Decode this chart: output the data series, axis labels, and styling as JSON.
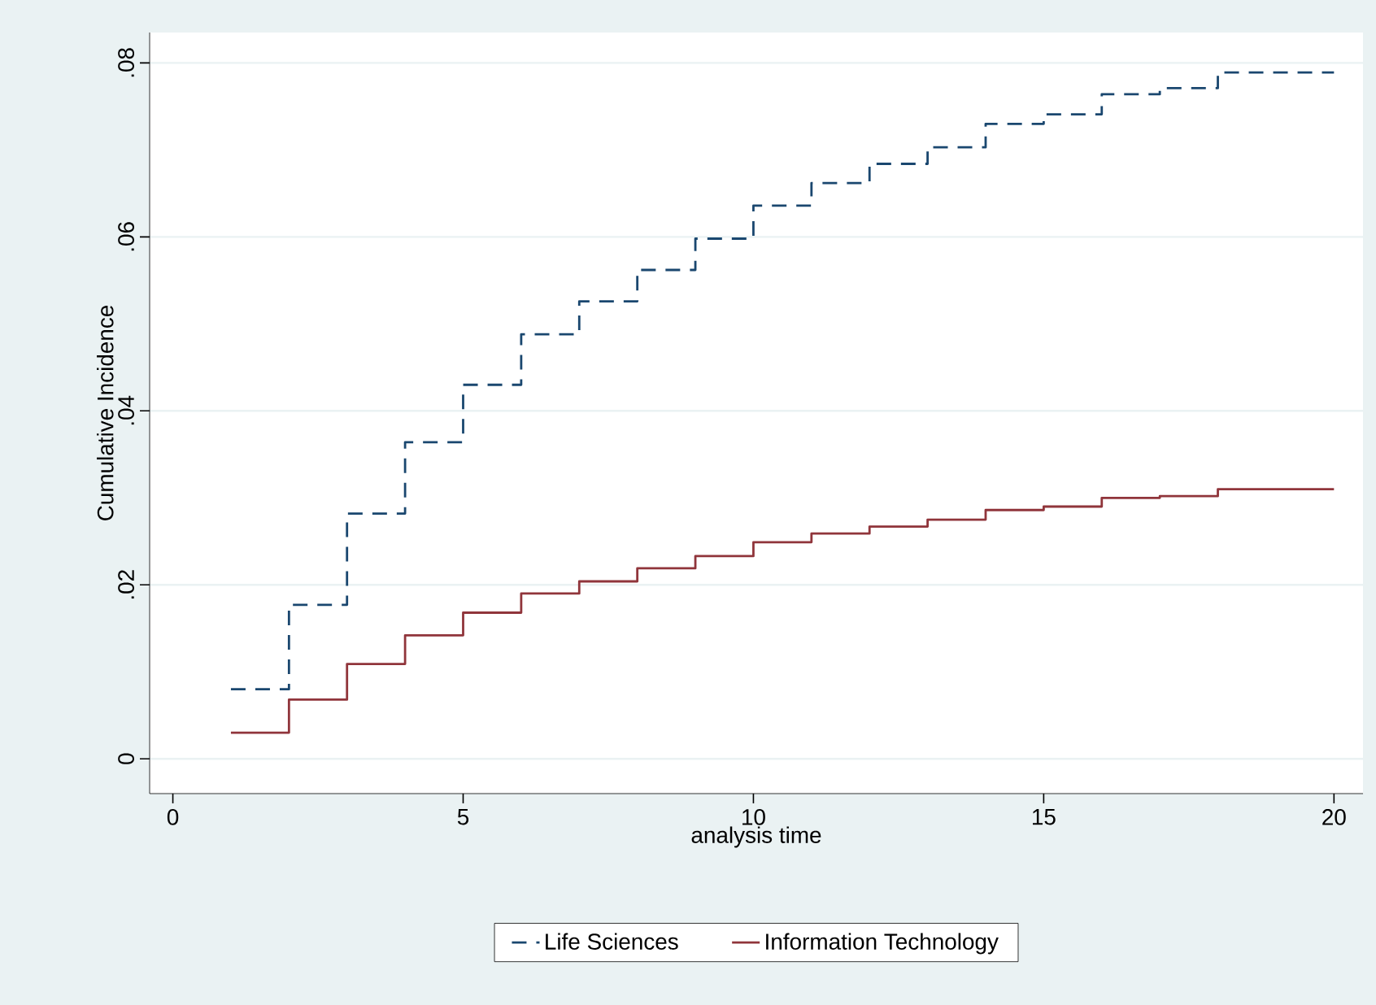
{
  "chart_data": {
    "type": "step",
    "xlabel": "analysis time",
    "ylabel": "Cumulative Incidence",
    "x": [
      1,
      2,
      3,
      4,
      5,
      6,
      7,
      8,
      9,
      10,
      11,
      12,
      13,
      14,
      15,
      16,
      17,
      18,
      19,
      20
    ],
    "series": [
      {
        "name": "Life Sciences",
        "color": "#1a476f",
        "line_style": "dashed",
        "values": [
          0.008,
          0.0177,
          0.0282,
          0.0364,
          0.043,
          0.0488,
          0.0526,
          0.0562,
          0.0598,
          0.0636,
          0.0662,
          0.0684,
          0.0703,
          0.073,
          0.0741,
          0.0764,
          0.0771,
          0.0789,
          0.0789,
          0.0789
        ]
      },
      {
        "name": "Information Technology",
        "color": "#90353b",
        "line_style": "solid",
        "values": [
          0.003,
          0.0068,
          0.0109,
          0.0142,
          0.0168,
          0.019,
          0.0204,
          0.0219,
          0.0233,
          0.0249,
          0.0259,
          0.0267,
          0.0275,
          0.0286,
          0.029,
          0.03,
          0.0302,
          0.031,
          0.031,
          0.031
        ]
      }
    ],
    "xlim": [
      -0.4,
      20.5
    ],
    "ylim": [
      -0.004,
      0.0835
    ],
    "xticks": [
      0,
      5,
      10,
      15,
      20
    ],
    "yticks": [
      0,
      {
        "value": 0.02,
        "label": ".02"
      },
      {
        "value": 0.04,
        "label": ".04"
      },
      {
        "value": 0.06,
        "label": ".06"
      },
      {
        "value": 0.08,
        "label": ".08"
      }
    ],
    "grid": "y",
    "legend": "bottom"
  }
}
